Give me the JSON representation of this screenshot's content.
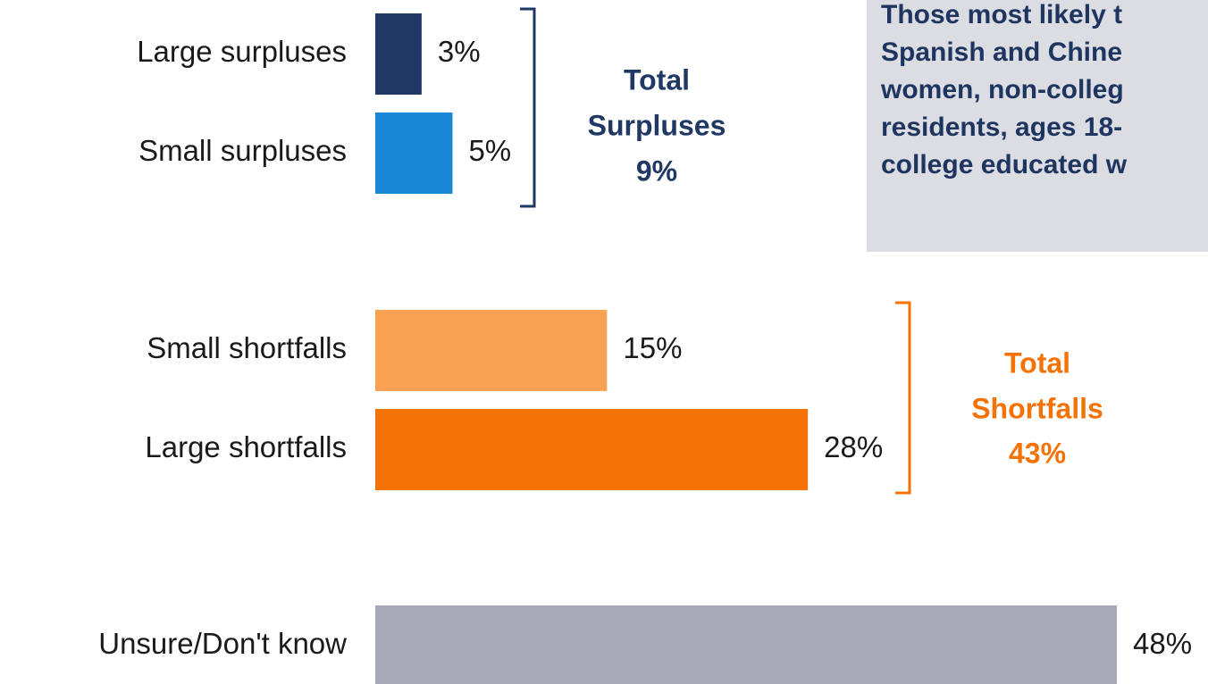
{
  "chart_data": {
    "type": "bar",
    "orientation": "horizontal",
    "categories": [
      "Large surpluses",
      "Small surpluses",
      "Small shortfalls",
      "Large shortfalls",
      "Unsure/Don't know"
    ],
    "values": [
      3,
      5,
      15,
      28,
      48
    ],
    "value_labels": [
      "3%",
      "5%",
      "15%",
      "28%",
      "48%"
    ],
    "colors": [
      "#1f3864",
      "#1a87d7",
      "#f9a253",
      "#f57206",
      "#a7a9b8"
    ],
    "groups": [
      {
        "name_lines": [
          "Total",
          "Surpluses",
          "9%"
        ],
        "members": [
          0,
          1
        ],
        "color": "#1f3864"
      },
      {
        "name_lines": [
          "Total",
          "Shortfalls",
          "43%"
        ],
        "members": [
          2,
          3
        ],
        "color": "#f57206"
      }
    ],
    "callout_lines": [
      "Those most likely t",
      "Spanish and Chine",
      "women, non-colleg",
      "residents, ages 18-",
      "college educated w"
    ]
  }
}
